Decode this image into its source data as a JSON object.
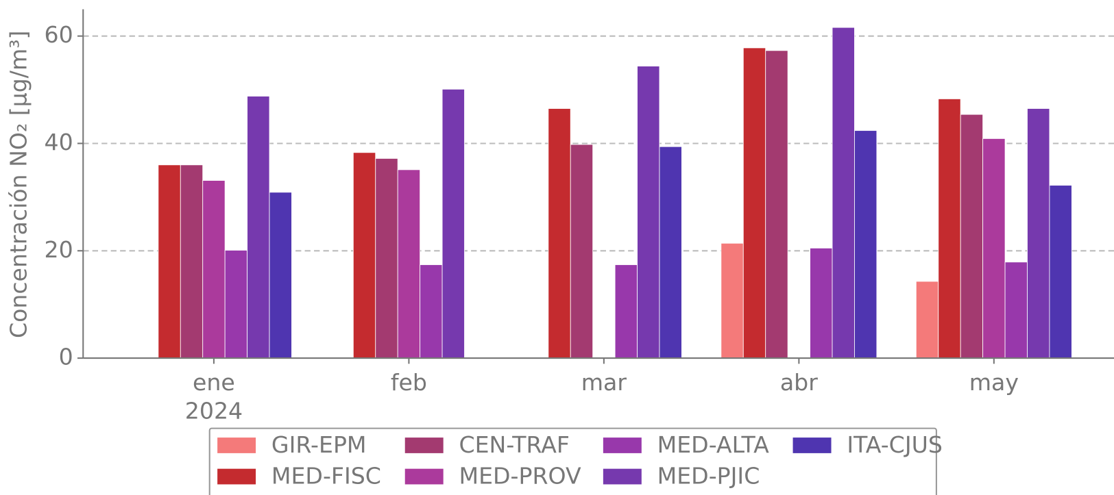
{
  "chart_data": {
    "type": "bar",
    "y_label": "Concentración NO₂ [μg/m³]",
    "categories": [
      "ene",
      "feb",
      "mar",
      "abr",
      "may"
    ],
    "x_sublabel": "2024",
    "series": [
      {
        "name": "GIR-EPM",
        "color": "#f47a7a",
        "values": [
          null,
          null,
          null,
          21.4,
          14.3
        ]
      },
      {
        "name": "MED-FISC",
        "color": "#c42b2f",
        "values": [
          36.0,
          38.3,
          46.5,
          57.8,
          48.3
        ]
      },
      {
        "name": "CEN-TRAF",
        "color": "#a33a70",
        "values": [
          36.0,
          37.2,
          39.8,
          57.3,
          45.4
        ]
      },
      {
        "name": "MED-PROV",
        "color": "#ab3a9c",
        "values": [
          33.1,
          35.1,
          null,
          null,
          40.9
        ]
      },
      {
        "name": "MED-ALTA",
        "color": "#9838ab",
        "values": [
          20.1,
          17.4,
          17.4,
          20.5,
          17.9
        ]
      },
      {
        "name": "MED-PJIC",
        "color": "#7639ae",
        "values": [
          48.8,
          50.1,
          54.4,
          61.6,
          46.5
        ]
      },
      {
        "name": "ITA-CJUS",
        "color": "#4f35b0",
        "values": [
          30.9,
          null,
          39.4,
          42.4,
          32.2
        ]
      }
    ],
    "ylim": [
      0,
      65
    ],
    "yticks": [
      0,
      20,
      40,
      60
    ],
    "grid": true
  }
}
